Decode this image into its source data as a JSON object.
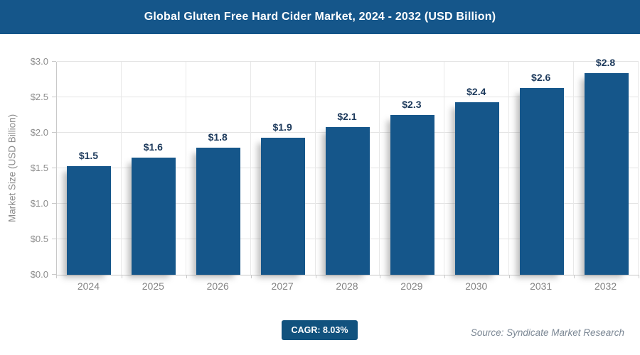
{
  "header": {
    "title": "Global Gluten Free Hard Cider Market, 2024 - 2032 (USD Billion)",
    "bg_color": "#15568a",
    "text_color": "#ffffff"
  },
  "chart_data": {
    "type": "bar",
    "title": "Global Gluten Free Hard Cider Market, 2024 - 2032 (USD Billion)",
    "categories": [
      "2024",
      "2025",
      "2026",
      "2027",
      "2028",
      "2029",
      "2030",
      "2031",
      "2032"
    ],
    "values": [
      1.53,
      1.65,
      1.79,
      1.93,
      2.08,
      2.25,
      2.43,
      2.63,
      2.84
    ],
    "bar_labels": [
      "$1.5",
      "$1.6",
      "$1.8",
      "$1.9",
      "$2.1",
      "$2.3",
      "$2.4",
      "$2.6",
      "$2.8"
    ],
    "xlabel": "",
    "ylabel": "Market Size (USD Billion)",
    "ylim": [
      0,
      3.0
    ],
    "ytick_step": 0.5,
    "ytick_labels": [
      "$0.0",
      "$0.5",
      "$1.0",
      "$1.5",
      "$2.0",
      "$2.5",
      "$3.0"
    ],
    "grid": true,
    "legend": false,
    "bar_color": "#15568a",
    "value_label_color": "#1d3a5c",
    "axis_text_color": "#8c8c8c"
  },
  "footer": {
    "cagr_label": "CAGR: 8.03%",
    "cagr_bg_color": "#11527e",
    "source": "Source: Syndicate Market Research"
  }
}
